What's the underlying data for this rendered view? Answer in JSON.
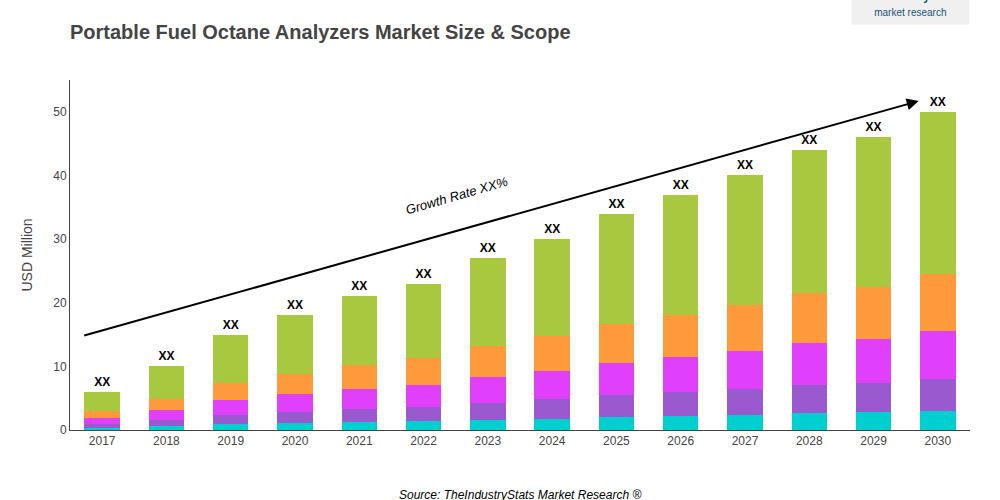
{
  "chart_data": {
    "type": "bar",
    "title": "Portable Fuel Octane Analyzers Market Size & Scope",
    "ylabel": "USD Million",
    "categories": [
      "2017",
      "2018",
      "2019",
      "2020",
      "2021",
      "2022",
      "2023",
      "2024",
      "2025",
      "2026",
      "2027",
      "2028",
      "2029",
      "2030"
    ],
    "stacked": true,
    "series": [
      {
        "color": "#00cfcf",
        "values": [
          0.36,
          0.6,
          0.9,
          1.08,
          1.26,
          1.38,
          1.62,
          1.8,
          2.04,
          2.22,
          2.4,
          2.64,
          2.76,
          3.0
        ]
      },
      {
        "color": "#9b59d0",
        "values": [
          0.6,
          1.0,
          1.5,
          1.8,
          2.1,
          2.3,
          2.7,
          3.0,
          3.4,
          3.7,
          4.0,
          4.4,
          4.6,
          5.0
        ]
      },
      {
        "color": "#e040fb",
        "values": [
          0.9,
          1.5,
          2.25,
          2.7,
          3.15,
          3.45,
          4.05,
          4.5,
          5.1,
          5.55,
          6.0,
          6.6,
          6.9,
          7.5
        ]
      },
      {
        "color": "#ff9a3c",
        "values": [
          1.08,
          1.8,
          2.7,
          3.24,
          3.78,
          4.14,
          4.86,
          5.4,
          6.12,
          6.66,
          7.2,
          7.92,
          8.28,
          9.0
        ]
      },
      {
        "color": "#a8c840",
        "values": [
          3.06,
          5.1,
          7.65,
          9.18,
          10.71,
          11.73,
          13.77,
          15.3,
          17.34,
          18.87,
          20.4,
          22.44,
          23.46,
          25.5
        ]
      }
    ],
    "ylim": [
      0,
      55
    ],
    "yticks": [
      0,
      10,
      20,
      30,
      40,
      50
    ],
    "grid": false,
    "annotations": [
      {
        "text": "XX",
        "category": "2017"
      },
      {
        "text": "XX",
        "category": "2018"
      },
      {
        "text": "XX",
        "category": "2019"
      },
      {
        "text": "XX",
        "category": "2020"
      },
      {
        "text": "XX",
        "category": "2021"
      },
      {
        "text": "XX",
        "category": "2022"
      },
      {
        "text": "XX",
        "category": "2023"
      },
      {
        "text": "XX",
        "category": "2024"
      },
      {
        "text": "XX",
        "category": "2025"
      },
      {
        "text": "XX",
        "category": "2026"
      },
      {
        "text": "XX",
        "category": "2027"
      },
      {
        "text": "XX",
        "category": "2028"
      },
      {
        "text": "XX",
        "category": "2029"
      },
      {
        "text": "XX",
        "category": "2030"
      },
      {
        "text": "Growth Rate XX%",
        "arrow": true
      },
      {
        "text": "The Industry Stats",
        "color": "#1a5276"
      },
      {
        "text": "market research",
        "color": "#1a5276"
      },
      {
        "text": "Source: TheIndustryStats Market Research ®"
      }
    ]
  }
}
